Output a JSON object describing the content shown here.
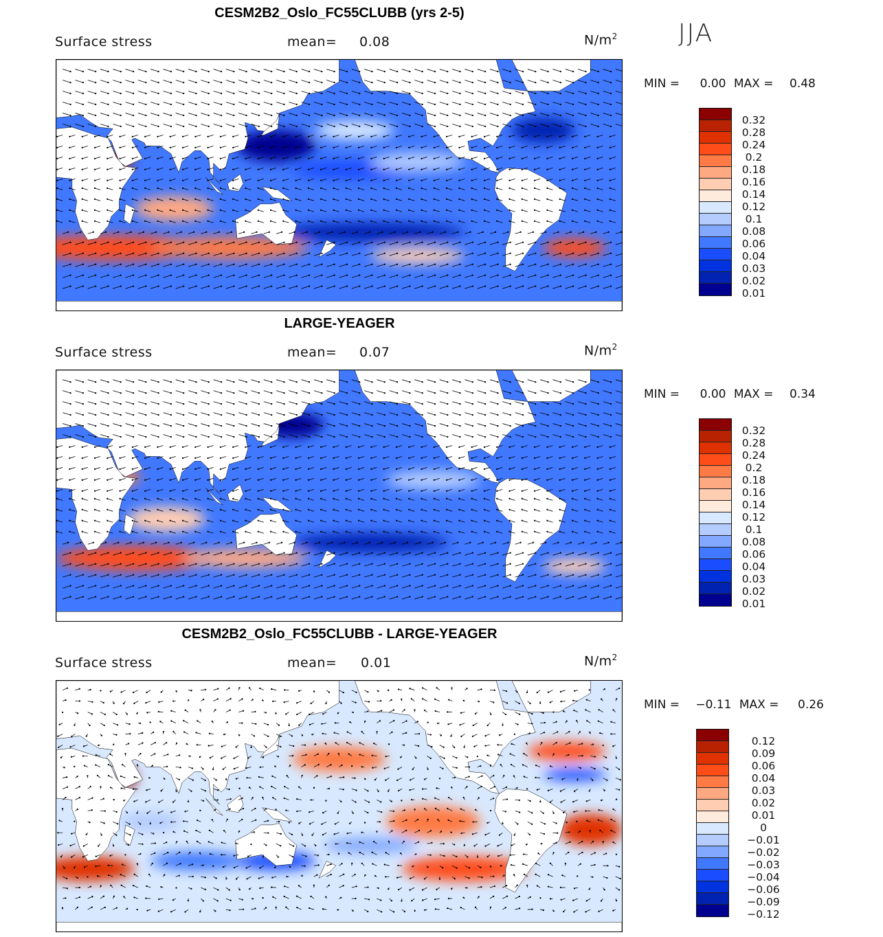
{
  "season": "JJA",
  "panels": [
    {
      "title": "CESM2B2_Oslo_FC55CLUBB (yrs 2-5)",
      "variable": "Surface stress",
      "mean_label": "mean=",
      "mean": "0.08",
      "units": "N/m",
      "units_sup": "2",
      "min_label": "MIN =",
      "min": "0.00",
      "max_label": "MAX =",
      "max": "0.48",
      "levels": [
        "0.32",
        "0.28",
        "0.24",
        "0.2",
        "0.18",
        "0.16",
        "0.14",
        "0.12",
        "0.1",
        "0.08",
        "0.06",
        "0.04",
        "0.03",
        "0.02",
        "0.01"
      ]
    },
    {
      "title": "LARGE-YEAGER",
      "variable": "Surface stress",
      "mean_label": "mean=",
      "mean": "0.07",
      "units": "N/m",
      "units_sup": "2",
      "min_label": "MIN =",
      "min": "0.00",
      "max_label": "MAX =",
      "max": "0.34",
      "levels": [
        "0.32",
        "0.28",
        "0.24",
        "0.2",
        "0.18",
        "0.16",
        "0.14",
        "0.12",
        "0.1",
        "0.08",
        "0.06",
        "0.04",
        "0.03",
        "0.02",
        "0.01"
      ]
    },
    {
      "title": "CESM2B2_Oslo_FC55CLUBB - LARGE-YEAGER",
      "variable": "Surface stress",
      "mean_label": "mean=",
      "mean": "0.01",
      "units": "N/m",
      "units_sup": "2",
      "min_label": "MIN =",
      "min": "−0.11",
      "max_label": "MAX =",
      "max": "0.26",
      "levels": [
        "0.12",
        "0.09",
        "0.06",
        "0.04",
        "0.03",
        "0.02",
        "0.01",
        "0",
        "−0.01",
        "−0.02",
        "−0.03",
        "−0.04",
        "−0.06",
        "−0.09",
        "−0.12"
      ]
    }
  ],
  "colors": [
    "#8b0000",
    "#b82200",
    "#e03200",
    "#ff4d1a",
    "#ff7a45",
    "#ffa982",
    "#ffcdb2",
    "#ffebdb",
    "#d8e9ff",
    "#b4ccff",
    "#82a8ff",
    "#4078ff",
    "#1a4dff",
    "#0033e0",
    "#0022b0",
    "#000090"
  ]
}
